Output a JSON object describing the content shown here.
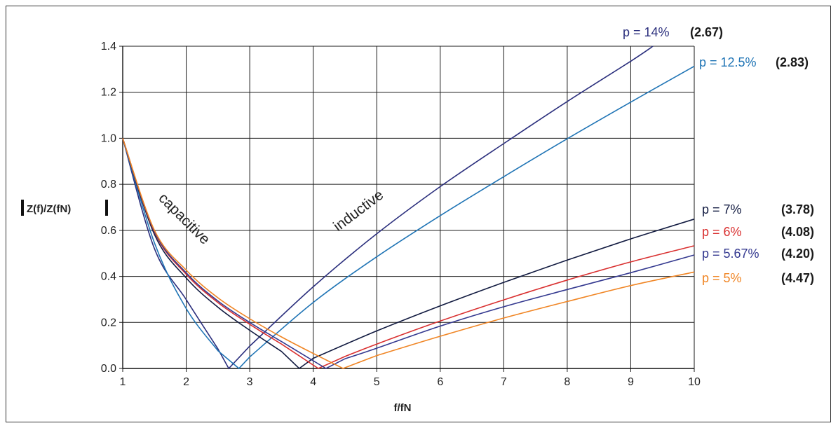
{
  "chart_data": {
    "type": "line",
    "xlabel": "f/fN",
    "ylabel": "Z(f)/Z(fN)",
    "xlim": [
      1,
      10
    ],
    "ylim": [
      0,
      1.4
    ],
    "x_ticks": [
      "1",
      "2",
      "3",
      "4",
      "5",
      "6",
      "7",
      "8",
      "9",
      "10"
    ],
    "y_ticks": [
      "0.0",
      "0.2",
      "0.4",
      "0.6",
      "0.8",
      "1.0",
      "1.2",
      "1.4"
    ],
    "grid": true,
    "annotations": {
      "capacitive": "capacitive",
      "inductive": "inductive"
    },
    "series": [
      {
        "name": "p = 14%",
        "value_label": "(2.67)",
        "resonance": 2.67,
        "color": "#2b2f7d",
        "x": [
          1,
          1.5,
          2,
          2.5,
          2.67,
          3,
          4,
          5,
          6,
          7,
          8,
          9,
          9.35
        ],
        "y": [
          1.0,
          0.52,
          0.299,
          0.085,
          0.0,
          0.097,
          0.355,
          0.585,
          0.79,
          0.977,
          1.16,
          1.335,
          1.4
        ]
      },
      {
        "name": "p = 12.5%",
        "value_label": "(2.83)",
        "resonance": 2.83,
        "color": "#1f74b5",
        "x": [
          1,
          1.5,
          2,
          2.5,
          2.83,
          3,
          4,
          5,
          6,
          7,
          8,
          9,
          10
        ],
        "y": [
          1.0,
          0.545,
          0.26,
          0.077,
          0.0,
          0.05,
          0.287,
          0.485,
          0.664,
          0.833,
          0.998,
          1.157,
          1.313
        ]
      },
      {
        "name": "p = 7%",
        "value_label": "(3.78)",
        "resonance": 3.78,
        "color": "#111a40",
        "x": [
          1,
          1.5,
          2,
          2.5,
          3,
          3.5,
          3.78,
          4,
          5,
          6,
          7,
          8,
          9,
          10
        ],
        "y": [
          1.0,
          0.582,
          0.393,
          0.266,
          0.166,
          0.074,
          0.0,
          0.044,
          0.163,
          0.272,
          0.374,
          0.471,
          0.563,
          0.649
        ]
      },
      {
        "name": "p = 6%",
        "value_label": "(4.08)",
        "resonance": 4.08,
        "color": "#d93030",
        "x": [
          1,
          1.5,
          2,
          2.5,
          3,
          3.5,
          4.08,
          4.5,
          5,
          6,
          7,
          8,
          9,
          10
        ],
        "y": [
          1.0,
          0.592,
          0.409,
          0.286,
          0.192,
          0.106,
          0.0,
          0.052,
          0.106,
          0.206,
          0.298,
          0.384,
          0.463,
          0.533
        ]
      },
      {
        "name": "p = 5.67%",
        "value_label": "(4.20)",
        "resonance": 4.2,
        "color": "#33388f",
        "x": [
          1,
          1.5,
          2,
          2.5,
          3,
          3.5,
          4.2,
          4.5,
          5,
          6,
          7,
          8,
          9,
          10
        ],
        "y": [
          1.0,
          0.595,
          0.415,
          0.293,
          0.2,
          0.117,
          0.0,
          0.042,
          0.088,
          0.184,
          0.268,
          0.343,
          0.416,
          0.493
        ]
      },
      {
        "name": "p = 5%",
        "value_label": "(4.47)",
        "resonance": 4.47,
        "color": "#f08524",
        "x": [
          1,
          1.5,
          2,
          2.5,
          3,
          3.5,
          4,
          4.47,
          5,
          6,
          7,
          8,
          9,
          10
        ],
        "y": [
          1.0,
          0.6,
          0.427,
          0.307,
          0.216,
          0.137,
          0.065,
          0.0,
          0.056,
          0.14,
          0.219,
          0.291,
          0.36,
          0.419
        ]
      }
    ]
  }
}
